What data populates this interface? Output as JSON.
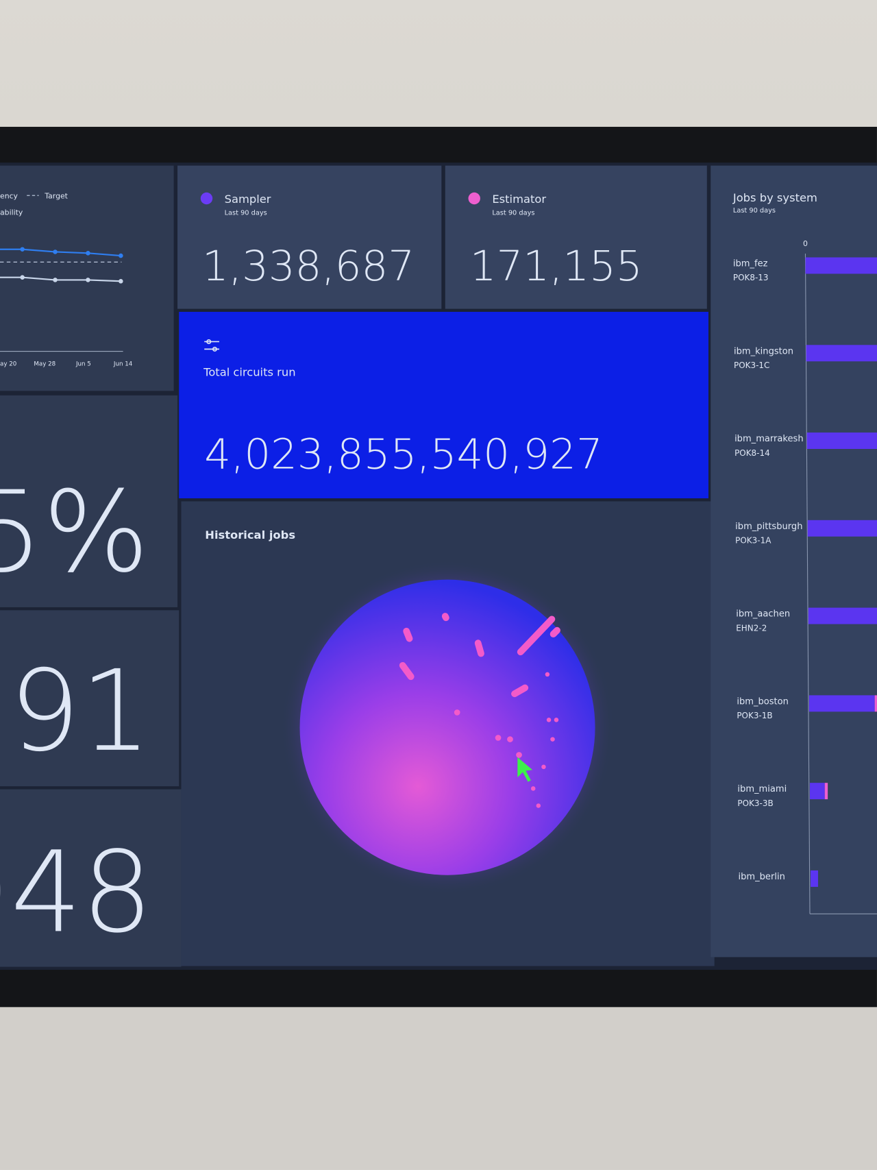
{
  "left_panels": {
    "line_chart": {
      "series": [
        {
          "name": "ency",
          "color": "#2f7ef0",
          "values": [
            80,
            80,
            78,
            77,
            75
          ]
        },
        {
          "name": "ability",
          "color": "#c9d6ea",
          "values": [
            58,
            58,
            56,
            56,
            55
          ]
        }
      ],
      "target": {
        "name": "Target",
        "value": 70
      },
      "x_labels": [
        "ay 20",
        "May 28",
        "Jun 5",
        "Jun 14"
      ],
      "ylim": [
        0,
        100
      ]
    },
    "big_numbers": [
      "5%",
      "91",
      "048"
    ]
  },
  "sampler": {
    "label": "Sampler",
    "sublabel": "Last 90 days",
    "value": "1,338,687"
  },
  "estimator": {
    "label": "Estimator",
    "sublabel": "Last 90 days",
    "value": "171,155"
  },
  "total_circuits": {
    "label": "Total circuits run",
    "value": "4,023,855,540,927"
  },
  "historical_jobs": {
    "title": "Historical jobs"
  },
  "jobs_by_system": {
    "title": "Jobs by system",
    "subtitle": "Last 90 days",
    "xlim": [
      0,
      100
    ],
    "xticks": [
      0
    ],
    "systems": [
      {
        "name": "ibm_fez",
        "code": "POK8-13"
      },
      {
        "name": "ibm_kingston",
        "code": "POK3-1C"
      },
      {
        "name": "ibm_marrakesh",
        "code": "POK8-14"
      },
      {
        "name": "ibm_pittsburgh",
        "code": "POK3-1A"
      },
      {
        "name": "ibm_aachen",
        "code": "EHN2-2"
      },
      {
        "name": "ibm_boston",
        "code": "POK3-1B"
      },
      {
        "name": "ibm_miami",
        "code": "POK3-3B"
      },
      {
        "name": "ibm_berlin",
        "code": null
      }
    ],
    "series": [
      {
        "name": "Sampler",
        "color": "#5b35f0",
        "values": [
          60,
          55,
          58,
          52,
          50,
          44,
          10,
          5
        ]
      },
      {
        "name": "Estimator",
        "color": "#ee5fcf",
        "values": [
          0,
          0,
          0,
          0,
          0,
          4,
          2,
          0
        ]
      }
    ]
  }
}
